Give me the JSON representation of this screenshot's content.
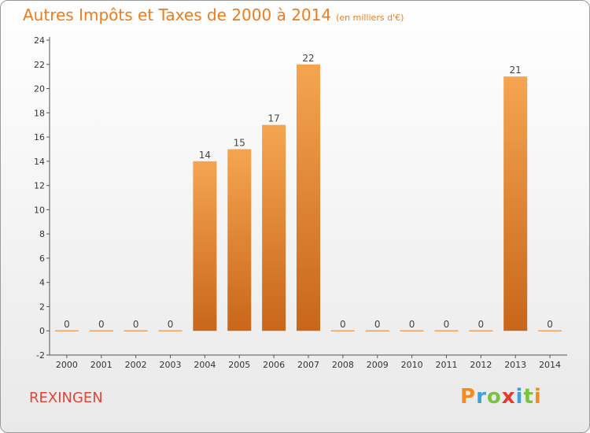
{
  "title": "Autres Impôts et Taxes de 2000 à 2014",
  "subtitle": "(en milliers d'€)",
  "commune": "REXINGEN",
  "logo": {
    "letters": [
      "P",
      "r",
      "o",
      "x",
      "i",
      "t",
      "i"
    ],
    "colors": [
      "#f28c1e",
      "#3aa1dd",
      "#7cc242",
      "#e8372c",
      "#3aa1dd",
      "#7cc242",
      "#f28c1e"
    ]
  },
  "colors": {
    "bar_top": "#f5a550",
    "bar_bottom": "#c8661a",
    "zero_line": "#f0a060"
  },
  "chart_data": {
    "type": "bar",
    "categories": [
      "2000",
      "2001",
      "2002",
      "2003",
      "2004",
      "2005",
      "2006",
      "2007",
      "2008",
      "2009",
      "2010",
      "2011",
      "2012",
      "2013",
      "2014"
    ],
    "values": [
      0,
      0,
      0,
      0,
      14,
      15,
      17,
      22,
      0,
      0,
      0,
      0,
      0,
      21,
      0
    ],
    "value_labels": [
      "0",
      "0",
      "0",
      "0",
      "14",
      "15",
      "17",
      "22",
      "0",
      "0",
      "0",
      "0",
      "0",
      "21",
      "0"
    ],
    "ylim": [
      -2,
      24
    ],
    "yticks": [
      "-2",
      "0",
      "2",
      "4",
      "6",
      "8",
      "10",
      "12",
      "14",
      "16",
      "18",
      "20",
      "22",
      "24"
    ],
    "grid": false
  }
}
